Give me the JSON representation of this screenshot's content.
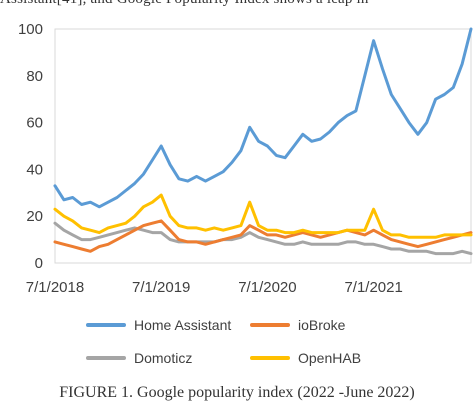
{
  "top_text": "Assistant[41], and Google Popularity Index shows a leap in",
  "caption": "FIGURE 1. Google popularity index (2022 -June 2022)",
  "chart_data": {
    "type": "line",
    "title": "",
    "xlabel": "",
    "ylabel": "",
    "ylim": [
      0,
      100
    ],
    "yticks": [
      0,
      20,
      40,
      60,
      80,
      100
    ],
    "xticks": [
      "7/1/2018",
      "7/1/2019",
      "7/1/2020",
      "7/1/2021"
    ],
    "grid": false,
    "legend": "bottom, two columns",
    "x": [
      "2018-07",
      "2018-08",
      "2018-09",
      "2018-10",
      "2018-11",
      "2018-12",
      "2019-01",
      "2019-02",
      "2019-03",
      "2019-04",
      "2019-05",
      "2019-06",
      "2019-07",
      "2019-08",
      "2019-09",
      "2019-10",
      "2019-11",
      "2019-12",
      "2020-01",
      "2020-02",
      "2020-03",
      "2020-04",
      "2020-05",
      "2020-06",
      "2020-07",
      "2020-08",
      "2020-09",
      "2020-10",
      "2020-11",
      "2020-12",
      "2021-01",
      "2021-02",
      "2021-03",
      "2021-04",
      "2021-05",
      "2021-06",
      "2021-07",
      "2021-08",
      "2021-09",
      "2021-10",
      "2021-11",
      "2021-12",
      "2022-01",
      "2022-02",
      "2022-03",
      "2022-04",
      "2022-05",
      "2022-06"
    ],
    "series": [
      {
        "name": "Home Assistant",
        "color": "#5b9bd5",
        "values": [
          33,
          27,
          28,
          25,
          26,
          24,
          26,
          28,
          31,
          34,
          38,
          44,
          50,
          42,
          36,
          35,
          37,
          35,
          37,
          39,
          43,
          48,
          58,
          52,
          50,
          46,
          45,
          50,
          55,
          52,
          53,
          56,
          60,
          63,
          65,
          80,
          95,
          83,
          72,
          66,
          60,
          55,
          60,
          70,
          72,
          75,
          85,
          100
        ]
      },
      {
        "name": "ioBroke",
        "color": "#ed7d31",
        "values": [
          9,
          8,
          7,
          6,
          5,
          7,
          8,
          10,
          12,
          14,
          16,
          17,
          18,
          14,
          10,
          9,
          9,
          8,
          9,
          10,
          11,
          12,
          16,
          14,
          12,
          12,
          11,
          12,
          13,
          12,
          11,
          12,
          13,
          14,
          13,
          12,
          14,
          12,
          10,
          9,
          8,
          7,
          8,
          9,
          10,
          11,
          12,
          13
        ]
      },
      {
        "name": "Domoticz",
        "color": "#a5a5a5",
        "values": [
          17,
          14,
          12,
          10,
          10,
          11,
          12,
          13,
          14,
          15,
          14,
          13,
          13,
          10,
          9,
          9,
          9,
          9,
          9,
          10,
          10,
          11,
          13,
          11,
          10,
          9,
          8,
          8,
          9,
          8,
          8,
          8,
          8,
          9,
          9,
          8,
          8,
          7,
          6,
          6,
          5,
          5,
          5,
          4,
          4,
          4,
          5,
          4
        ]
      },
      {
        "name": "OpenHAB",
        "color": "#ffc000",
        "values": [
          23,
          20,
          18,
          15,
          14,
          13,
          15,
          16,
          17,
          20,
          24,
          26,
          29,
          20,
          16,
          15,
          15,
          14,
          15,
          14,
          15,
          16,
          26,
          16,
          14,
          14,
          13,
          13,
          14,
          13,
          13,
          13,
          13,
          14,
          14,
          14,
          23,
          14,
          12,
          12,
          11,
          11,
          11,
          11,
          12,
          12,
          12,
          12
        ]
      }
    ]
  }
}
